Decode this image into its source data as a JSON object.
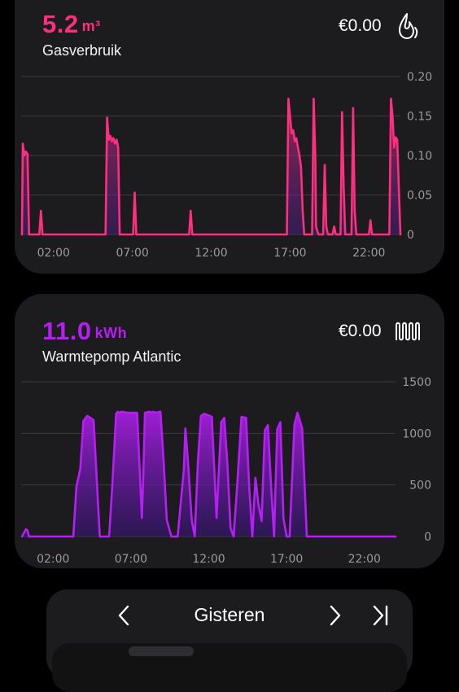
{
  "gas_card": {
    "value": "5.2",
    "unit": "m³",
    "name": "Gasverbruik",
    "cost": "€0.00",
    "icon": "flame-icon",
    "accent": "#ff2e7e"
  },
  "heat_card": {
    "value": "11.0",
    "unit": "kWh",
    "name": "Warmtepomp Atlantic",
    "cost": "€0.00",
    "icon": "radiator-icon",
    "accent": "#b61ef5"
  },
  "nav": {
    "title": "Gisteren",
    "prev_icon": "chevron-left-icon",
    "next_icon": "chevron-right-icon",
    "last_icon": "skip-to-end-icon"
  },
  "chart_data": [
    {
      "type": "area",
      "color": "#ff2e7e",
      "x_tick_labels": [
        "02:00",
        "07:00",
        "12:00",
        "17:00",
        "22:00"
      ],
      "y_tick_labels": [
        "0.20",
        "0.15",
        "0.10",
        "0.05",
        "0"
      ],
      "ylim": [
        0,
        0.2
      ],
      "xlim": [
        0,
        24
      ],
      "grid": true,
      "x": [
        0,
        0.05,
        0.15,
        0.25,
        0.35,
        0.45,
        0.6,
        1.1,
        1.2,
        1.3,
        5.3,
        5.4,
        5.5,
        5.6,
        5.7,
        5.8,
        5.9,
        6.0,
        6.1,
        6.2,
        6.3,
        6.4,
        6.5,
        6.6,
        6.75,
        7.05,
        7.15,
        7.25,
        10.6,
        10.7,
        10.8,
        16.8,
        16.9,
        17.0,
        17.1,
        17.2,
        17.3,
        17.4,
        17.5,
        17.6,
        17.7,
        17.8,
        17.9,
        18.0,
        18.4,
        18.5,
        18.6,
        18.65,
        18.8,
        19.1,
        19.2,
        19.3,
        19.4,
        19.7,
        19.8,
        19.9,
        20.2,
        20.3,
        20.4,
        20.5,
        20.6,
        20.9,
        21.0,
        21.1,
        21.2,
        21.5,
        22.0,
        22.1,
        22.2,
        23.3,
        23.4,
        23.5,
        23.6,
        23.7,
        23.8,
        24.0
      ],
      "values": [
        0,
        0.115,
        0.1,
        0.105,
        0.102,
        0,
        0,
        0,
        0.03,
        0,
        0,
        0.148,
        0.12,
        0.125,
        0.118,
        0.122,
        0.115,
        0.12,
        0.11,
        0,
        0,
        0,
        0,
        0,
        0,
        0,
        0.053,
        0,
        0,
        0.03,
        0,
        0,
        0.172,
        0.15,
        0.128,
        0.132,
        0.118,
        0.122,
        0.11,
        0.1,
        0.085,
        0.03,
        0,
        0,
        0,
        0.172,
        0.1,
        0.01,
        0,
        0,
        0.088,
        0.01,
        0,
        0,
        0.01,
        0,
        0,
        0.155,
        0.06,
        0,
        0,
        0,
        0.16,
        0.03,
        0,
        0,
        0,
        0.018,
        0,
        0,
        0.172,
        0.15,
        0.11,
        0.123,
        0.12,
        0
      ]
    },
    {
      "type": "area",
      "color": "#b61ef5",
      "x_tick_labels": [
        "02:00",
        "07:00",
        "12:00",
        "17:00",
        "22:00"
      ],
      "y_tick_labels": [
        "1500",
        "1000",
        "500",
        "0"
      ],
      "ylim": [
        0,
        1500
      ],
      "xlim": [
        0,
        24
      ],
      "grid": true,
      "x": [
        0,
        0.15,
        0.25,
        0.35,
        0.45,
        0.6,
        3.3,
        3.5,
        3.75,
        3.95,
        4.2,
        4.6,
        5.0,
        5.3,
        5.6,
        5.8,
        6.05,
        6.15,
        6.25,
        6.4,
        6.8,
        7.4,
        7.7,
        7.8,
        7.9,
        8.2,
        8.35,
        8.45,
        8.6,
        8.9,
        9.1,
        9.3,
        9.6,
        10.0,
        10.4,
        10.5,
        10.7,
        10.9,
        11.1,
        11.3,
        11.5,
        11.7,
        11.9,
        12.2,
        12.5,
        12.8,
        13.0,
        13.2,
        13.4,
        13.6,
        13.8,
        14.1,
        14.4,
        14.6,
        14.8,
        15.0,
        15.2,
        15.4,
        15.6,
        15.8,
        16.0,
        16.2,
        16.4,
        16.6,
        16.8,
        17.0,
        17.2,
        17.5,
        17.7,
        18.0,
        18.3,
        18.5,
        18.8,
        24.0
      ],
      "values": [
        0,
        40,
        70,
        60,
        0,
        0,
        0,
        480,
        660,
        1120,
        1170,
        1130,
        0,
        0,
        0,
        480,
        1190,
        1210,
        1200,
        1210,
        1200,
        1200,
        180,
        620,
        1200,
        1210,
        1200,
        1210,
        1200,
        1210,
        740,
        160,
        0,
        0,
        650,
        1050,
        660,
        160,
        0,
        720,
        1170,
        1190,
        1180,
        1160,
        180,
        1110,
        1150,
        700,
        80,
        0,
        430,
        1160,
        1150,
        480,
        0,
        570,
        300,
        150,
        1030,
        1080,
        500,
        0,
        1040,
        1110,
        180,
        0,
        0,
        1080,
        1200,
        1050,
        0,
        0,
        0,
        0
      ]
    }
  ]
}
